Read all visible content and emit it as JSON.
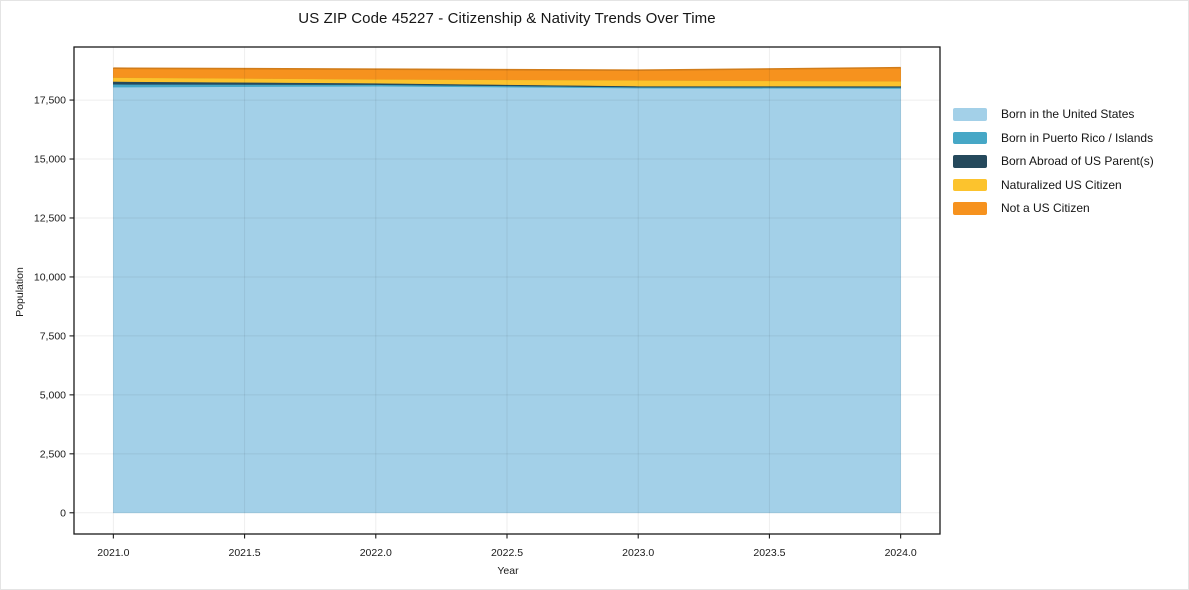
{
  "chart_data": {
    "type": "area",
    "stacked": true,
    "title": "US ZIP Code 45227 - Citizenship & Nativity Trends Over Time",
    "xlabel": "Year",
    "ylabel": "Population",
    "x": [
      2021,
      2022,
      2023,
      2024
    ],
    "x_ticks": [
      2021.0,
      2021.5,
      2022.0,
      2022.5,
      2023.0,
      2023.5,
      2024.0
    ],
    "x_tick_labels": [
      "2021.0",
      "2021.5",
      "2022.0",
      "2022.5",
      "2023.0",
      "2023.5",
      "2024.0"
    ],
    "y_ticks": [
      0,
      2500,
      5000,
      7500,
      10000,
      12500,
      15000,
      17500
    ],
    "y_tick_labels": [
      "0",
      "2,500",
      "5,000",
      "7,500",
      "10,000",
      "12,500",
      "15,000",
      "17,500"
    ],
    "xlim": [
      2020.85,
      2024.15
    ],
    "ylim": [
      -900,
      19750
    ],
    "grid": true,
    "legend_position": "right",
    "series": [
      {
        "name": "Born in the United States",
        "color": "#a3d0e8",
        "values": [
          18050,
          18090,
          18010,
          17990
        ]
      },
      {
        "name": "Born in Puerto Rico / Islands",
        "color": "#46a7c6",
        "values": [
          120,
          65,
          40,
          50
        ]
      },
      {
        "name": "Born Abroad of US Parent(s)",
        "color": "#25495c",
        "values": [
          120,
          65,
          45,
          55
        ]
      },
      {
        "name": "Naturalized US Citizen",
        "color": "#fcc32d",
        "values": [
          170,
          170,
          250,
          210
        ]
      },
      {
        "name": "Not a US Citizen",
        "color": "#f6921e",
        "values": [
          390,
          420,
          420,
          570
        ]
      }
    ]
  }
}
